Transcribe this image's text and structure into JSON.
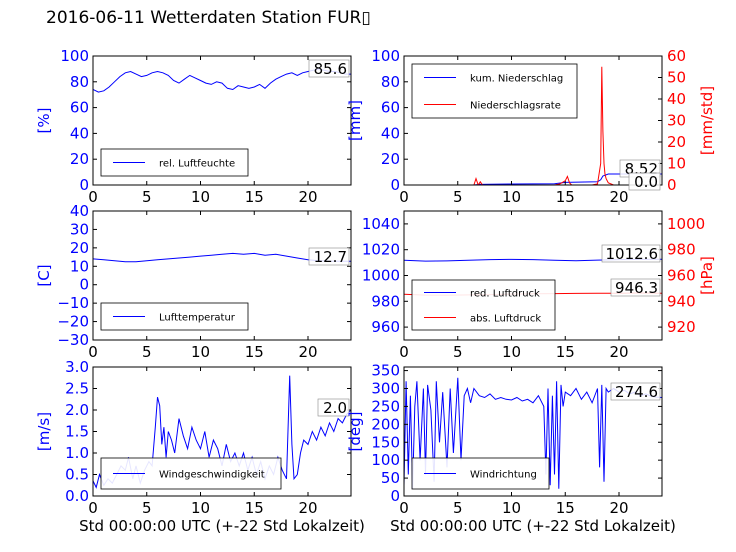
{
  "title": "2016-06-11 Wetterdaten Station FUR▯",
  "colors": {
    "left_axis": "#0000ff",
    "right_axis": "#ff0000",
    "series_blue": "#0000ff",
    "series_red": "#ff0000",
    "axis": "#000000"
  },
  "chart_data": [
    {
      "id": "humidity",
      "type": "line",
      "ylabel": "[%]",
      "xlabel": "",
      "xlim": [
        0,
        24
      ],
      "ylim": [
        0,
        100
      ],
      "xticks": [
        "0",
        "5",
        "10",
        "15",
        "20"
      ],
      "yticks": [
        "0",
        "20",
        "40",
        "60",
        "80",
        "100"
      ],
      "legend": "bottom-left",
      "last_value_label": "85.6",
      "series": [
        {
          "name": "rel. Luftfeuchte",
          "color": "#0000ff",
          "x": [
            0,
            0.5,
            1,
            1.5,
            2,
            2.5,
            3,
            3.5,
            4,
            4.5,
            5,
            5.5,
            6,
            6.5,
            7,
            7.5,
            8,
            8.5,
            9,
            9.5,
            10,
            10.5,
            11,
            11.5,
            12,
            12.5,
            13,
            13.5,
            14,
            14.5,
            15,
            15.5,
            16,
            16.5,
            17,
            17.5,
            18,
            18.5,
            19,
            19.5,
            20,
            20.5,
            21,
            21.5,
            22,
            22.5,
            23,
            23.5,
            24
          ],
          "y": [
            74,
            72,
            73,
            76,
            80,
            84,
            87,
            88,
            86,
            84,
            85,
            87,
            88,
            87,
            85,
            81,
            79,
            82,
            85,
            83,
            81,
            79,
            78,
            80,
            79,
            75,
            74,
            77,
            76,
            75,
            76,
            78,
            75,
            79,
            82,
            84,
            86,
            87,
            85,
            87,
            88,
            89,
            90,
            89,
            88,
            88,
            87,
            86,
            86
          ]
        }
      ]
    },
    {
      "id": "precipitation",
      "type": "line",
      "ylabel": "[mm]",
      "ylabel_right": "[mm/std]",
      "xlim": [
        0,
        24
      ],
      "ylim": [
        0,
        100
      ],
      "ylim_right": [
        0,
        60
      ],
      "xticks": [
        "0",
        "5",
        "10",
        "15",
        "20"
      ],
      "yticks": [
        "0",
        "20",
        "40",
        "60",
        "80",
        "100"
      ],
      "yticks_right": [
        "0",
        "10",
        "20",
        "30",
        "40",
        "50",
        "60"
      ],
      "legend": "top-left",
      "last_value_labels": [
        "8.52",
        "0.0"
      ],
      "series": [
        {
          "name": "kum. Niederschlag",
          "color": "#0000ff",
          "axis": "left",
          "x": [
            0,
            6.5,
            7,
            10,
            14,
            15,
            18,
            18.3,
            18.5,
            19,
            24
          ],
          "y": [
            0,
            0,
            0.5,
            0.8,
            1,
            2,
            2.5,
            4,
            7,
            8.5,
            8.52
          ]
        },
        {
          "name": "Niederschlagsrate",
          "color": "#ff0000",
          "axis": "right",
          "x": [
            0,
            6.5,
            6.7,
            6.9,
            7.1,
            7.3,
            14,
            14.5,
            15,
            15.2,
            15.4,
            15.6,
            17.5,
            18,
            18.3,
            18.4,
            18.5,
            18.6,
            18.7,
            18.8,
            19,
            19.5,
            24
          ],
          "y": [
            0,
            0,
            3,
            0,
            1.5,
            0,
            0,
            0.5,
            2,
            4,
            1,
            0,
            0,
            0.5,
            10,
            55,
            25,
            10,
            5,
            3,
            1,
            0,
            0
          ]
        }
      ]
    },
    {
      "id": "temperature",
      "type": "line",
      "ylabel": "[C]",
      "xlim": [
        0,
        24
      ],
      "ylim": [
        -30,
        40
      ],
      "xticks": [
        "0",
        "5",
        "10",
        "15",
        "20"
      ],
      "yticks": [
        "−30",
        "−20",
        "−10",
        "0",
        "10",
        "20",
        "30",
        "40"
      ],
      "legend": "bottom-left",
      "last_value_label": "12.7",
      "series": [
        {
          "name": "Lufttemperatur",
          "color": "#0000ff",
          "x": [
            0,
            1,
            2,
            3,
            4,
            5,
            6,
            7,
            8,
            9,
            10,
            11,
            12,
            13,
            14,
            15,
            16,
            17,
            18,
            19,
            20,
            21,
            22,
            23,
            24
          ],
          "y": [
            14,
            13.5,
            13,
            12.5,
            12.5,
            13,
            13.5,
            14,
            14.5,
            15,
            15.5,
            16,
            16.5,
            17,
            16.5,
            17,
            16,
            16.5,
            15.5,
            14.5,
            13.5,
            13,
            12.8,
            12.7,
            12.7
          ]
        }
      ]
    },
    {
      "id": "pressure",
      "type": "line",
      "ylabel_right": "[hPa]",
      "xlim": [
        0,
        24
      ],
      "ylim": [
        950,
        1050
      ],
      "ylim_right": [
        910,
        1010
      ],
      "xticks": [
        "0",
        "5",
        "10",
        "15",
        "20"
      ],
      "yticks": [
        "960",
        "980",
        "1000",
        "1020",
        "1040"
      ],
      "yticks_right": [
        "920",
        "940",
        "960",
        "980",
        "1000"
      ],
      "legend": "bottom-left",
      "last_value_labels": [
        "1012.6",
        "946.3"
      ],
      "series": [
        {
          "name": "red. Luftdruck",
          "color": "#0000ff",
          "axis": "left",
          "x": [
            0,
            2,
            4,
            6,
            8,
            10,
            12,
            14,
            16,
            18,
            20,
            22,
            24
          ],
          "y": [
            1011.8,
            1011.2,
            1011.3,
            1011.8,
            1012.3,
            1012.5,
            1012.3,
            1011.8,
            1011.5,
            1011.9,
            1012.3,
            1012.5,
            1012.6
          ]
        },
        {
          "name": "abs. Luftdruck",
          "color": "#ff0000",
          "axis": "right",
          "x": [
            0,
            2,
            4,
            6,
            8,
            10,
            12,
            14,
            16,
            18,
            20,
            22,
            24
          ],
          "y": [
            945.5,
            944.8,
            944.7,
            945,
            945.2,
            945.6,
            945.9,
            946,
            946.1,
            946.2,
            946.3,
            946.4,
            946.3
          ]
        }
      ]
    },
    {
      "id": "wind_speed",
      "type": "line",
      "ylabel": "[m/s]",
      "xlabel": "Std 00:00:00 UTC (+-22 Std Lokalzeit)",
      "xlim": [
        0,
        24
      ],
      "ylim": [
        0,
        3
      ],
      "xticks": [
        "0",
        "5",
        "10",
        "15",
        "20"
      ],
      "yticks": [
        "0.0",
        "0.5",
        "1.0",
        "1.5",
        "2.0",
        "2.5",
        "3.0"
      ],
      "legend": "bottom-left",
      "last_value_label": "2.0",
      "series": [
        {
          "name": "Windgeschwindigkeit",
          "color": "#0000ff",
          "x": [
            0,
            0.3,
            0.6,
            1,
            1.4,
            1.8,
            2.2,
            2.6,
            3,
            3.3,
            3.7,
            4,
            4.4,
            4.8,
            5.2,
            5.5,
            5.8,
            6,
            6.2,
            6.4,
            6.6,
            6.8,
            7,
            7.3,
            7.6,
            8,
            8.4,
            8.8,
            9.2,
            9.6,
            10,
            10.4,
            10.8,
            11.2,
            11.6,
            12,
            12.4,
            12.8,
            13.2,
            13.6,
            14,
            14.4,
            14.8,
            15.2,
            15.6,
            16,
            16.4,
            16.8,
            17.2,
            17.6,
            18,
            18.3,
            18.5,
            18.7,
            19,
            19.3,
            19.6,
            20,
            20.4,
            20.8,
            21.2,
            21.6,
            22,
            22.4,
            22.8,
            23.2,
            23.6,
            24
          ],
          "y": [
            0.35,
            0.2,
            0.5,
            0.25,
            0.4,
            0.3,
            0.5,
            0.7,
            0.6,
            0.9,
            0.4,
            0.7,
            0.3,
            0.6,
            0.8,
            0.7,
            1.6,
            2.3,
            2.1,
            1.2,
            1.6,
            0.9,
            1.5,
            1.3,
            1.0,
            1.8,
            1.4,
            1.1,
            1.6,
            1.3,
            1.1,
            1.5,
            0.9,
            1.3,
            1.1,
            0.7,
            1.2,
            0.8,
            1.0,
            0.7,
            1.0,
            0.6,
            0.9,
            0.5,
            0.8,
            0.4,
            0.7,
            0.5,
            0.9,
            0.6,
            0.4,
            2.8,
            1.2,
            0.4,
            0.5,
            1.0,
            1.3,
            1.2,
            1.5,
            1.3,
            1.6,
            1.4,
            1.7,
            1.5,
            1.8,
            1.7,
            1.9,
            2.0
          ]
        }
      ]
    },
    {
      "id": "wind_direction",
      "type": "line",
      "ylabel": "[deg]",
      "xlabel": "Std 00:00:00 UTC (+-22 Std Lokalzeit)",
      "xlim": [
        0,
        24
      ],
      "ylim": [
        0,
        360
      ],
      "xticks": [
        "0",
        "5",
        "10",
        "15",
        "20"
      ],
      "yticks": [
        "0",
        "50",
        "100",
        "150",
        "200",
        "250",
        "300",
        "350"
      ],
      "legend": "bottom-left",
      "last_value_label": "274.6",
      "series": [
        {
          "name": "Windrichtung",
          "color": "#0000ff",
          "x": [
            0,
            0.2,
            0.4,
            0.6,
            0.8,
            1,
            1.2,
            1.5,
            1.8,
            2,
            2.2,
            2.5,
            2.8,
            3,
            3.3,
            3.6,
            4,
            4.3,
            4.6,
            5,
            5.3,
            5.6,
            5.9,
            6.2,
            6.5,
            7,
            7.5,
            8,
            8.5,
            9,
            9.5,
            10,
            10.5,
            11,
            11.5,
            12,
            12.5,
            13,
            13.2,
            13.4,
            13.6,
            13.8,
            14,
            14.2,
            14.4,
            14.6,
            14.8,
            15,
            15.5,
            16,
            16.5,
            17,
            17.5,
            18,
            18.2,
            18.4,
            18.6,
            18.8,
            19,
            19.5,
            20,
            20.5,
            21,
            21.5,
            22,
            22.5,
            23,
            23.5,
            24
          ],
          "y": [
            30,
            320,
            60,
            280,
            20,
            250,
            320,
            100,
            300,
            60,
            310,
            240,
            40,
            320,
            150,
            290,
            80,
            300,
            120,
            330,
            100,
            280,
            300,
            260,
            300,
            280,
            275,
            285,
            270,
            275,
            270,
            268,
            275,
            265,
            270,
            260,
            280,
            250,
            60,
            300,
            30,
            280,
            60,
            320,
            20,
            310,
            250,
            290,
            280,
            300,
            270,
            290,
            260,
            300,
            80,
            310,
            40,
            300,
            290,
            300,
            290,
            295,
            285,
            290,
            280,
            285,
            278,
            276,
            275
          ]
        }
      ]
    }
  ]
}
